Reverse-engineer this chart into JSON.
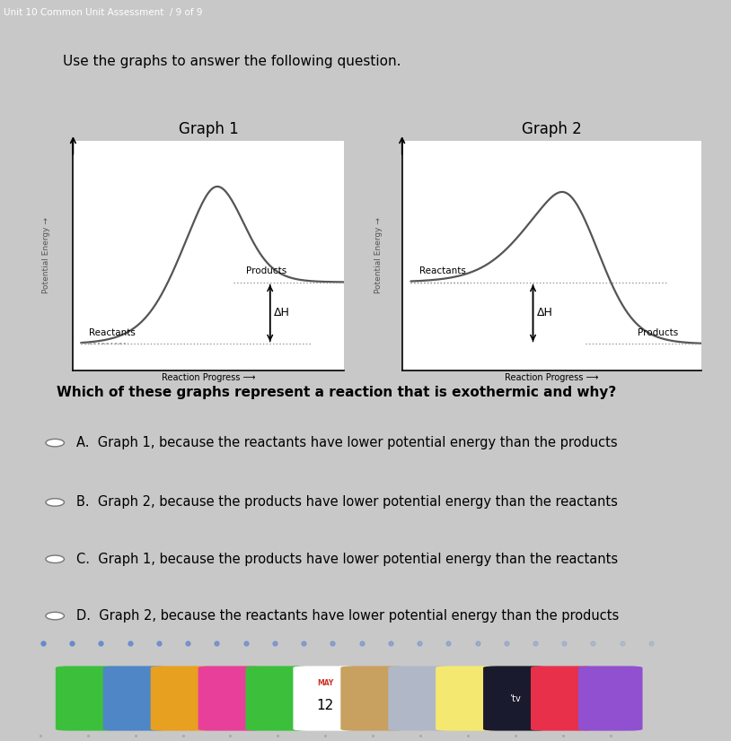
{
  "title_bar": "Unit 10 Common Unit Assessment  / 9 of 9",
  "instruction": "Use the graphs to answer the following question.",
  "graph1_title": "Graph 1",
  "graph2_title": "Graph 2",
  "question": "Which of these graphs represent a reaction that is exothermic and why?",
  "options": [
    "A.  Graph 1, because the reactants have lower potential energy than the products",
    "B.  Graph 2, because the products have lower potential energy than the reactants",
    "C.  Graph 1, because the products have lower potential energy than the reactants",
    "D.  Graph 2, because the reactants have lower potential energy than the products"
  ],
  "bg_outer": "#c8c8c8",
  "bg_inner": "#e0e0e0",
  "card_color": "#f2f2f2",
  "graph_bg": "#ffffff",
  "line_color": "#555555",
  "dotted_color": "#999999",
  "topbar_color": "#3d3d3d",
  "dock_color": "#7a7a8a",
  "ylabel": "Potential Energy",
  "xlabel": "Reaction Progress",
  "graph1_labels": {
    "reactants": "Reactants",
    "products": "Products",
    "dh": "ΔH"
  },
  "graph2_labels": {
    "reactants": "Reactants",
    "products": "Products",
    "dh": "ΔH"
  },
  "dot_color": "#6688cc",
  "graph1_endothermic": true,
  "graph2_exothermic": true
}
